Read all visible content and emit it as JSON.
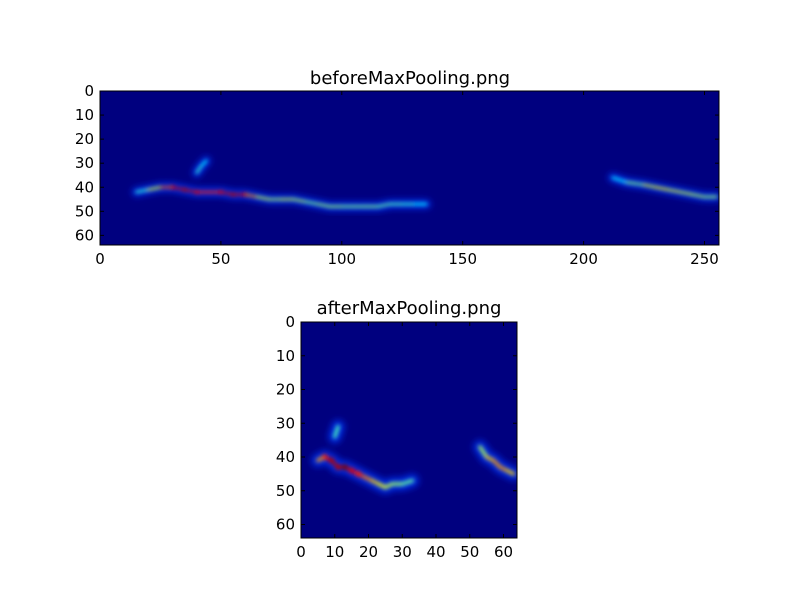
{
  "chart_data": [
    {
      "type": "heatmap",
      "title": "beforeMaxPooling.png",
      "xlim": [
        0,
        256
      ],
      "ylim": [
        64,
        0
      ],
      "xticks": [
        0,
        50,
        100,
        150,
        200,
        250
      ],
      "yticks": [
        0,
        10,
        20,
        30,
        40,
        50,
        60
      ],
      "colormap": "jet",
      "background_color": "#00007f",
      "traces": [
        {
          "points": [
            [
              15,
              42
            ],
            [
              20,
              41
            ],
            [
              25,
              40
            ],
            [
              30,
              40
            ],
            [
              35,
              41
            ],
            [
              40,
              42
            ],
            [
              45,
              42
            ],
            [
              50,
              42
            ],
            [
              55,
              43
            ],
            [
              60,
              43
            ],
            [
              65,
              44
            ],
            [
              70,
              45
            ],
            [
              75,
              45
            ],
            [
              80,
              45
            ],
            [
              85,
              46
            ],
            [
              90,
              47
            ],
            [
              95,
              48
            ],
            [
              100,
              48
            ],
            [
              105,
              48
            ],
            [
              110,
              48
            ],
            [
              115,
              48
            ],
            [
              120,
              47
            ],
            [
              125,
              47
            ],
            [
              130,
              47
            ],
            [
              135,
              47
            ]
          ],
          "intensity": [
            0.35,
            0.5,
            0.7,
            0.9,
            0.95,
            0.9,
            0.8,
            0.9,
            0.95,
            0.9,
            0.6,
            0.55,
            0.55,
            0.6,
            0.5,
            0.5,
            0.55,
            0.5,
            0.5,
            0.5,
            0.5,
            0.45,
            0.45,
            0.4,
            0.35
          ]
        },
        {
          "points": [
            [
              40,
              34
            ],
            [
              42,
              31
            ],
            [
              44,
              29
            ]
          ],
          "intensity": [
            0.45,
            0.4,
            0.35
          ]
        },
        {
          "points": [
            [
              212,
              36
            ],
            [
              218,
              38
            ],
            [
              225,
              39
            ],
            [
              230,
              40
            ],
            [
              235,
              41
            ],
            [
              240,
              42
            ],
            [
              245,
              43
            ],
            [
              250,
              44
            ],
            [
              255,
              44
            ]
          ],
          "intensity": [
            0.3,
            0.45,
            0.55,
            0.65,
            0.6,
            0.6,
            0.55,
            0.55,
            0.5
          ]
        }
      ]
    },
    {
      "type": "heatmap",
      "title": "afterMaxPooling.png",
      "xlim": [
        0,
        64
      ],
      "ylim": [
        64,
        0
      ],
      "xticks": [
        0,
        10,
        20,
        30,
        40,
        50,
        60
      ],
      "yticks": [
        0,
        10,
        20,
        30,
        40,
        50,
        60
      ],
      "colormap": "jet",
      "background_color": "#00007f",
      "traces": [
        {
          "points": [
            [
              5,
              41
            ],
            [
              7,
              40
            ],
            [
              9,
              41
            ],
            [
              11,
              43
            ],
            [
              13,
              43
            ],
            [
              15,
              44
            ],
            [
              17,
              45
            ],
            [
              19,
              46
            ],
            [
              21,
              47
            ],
            [
              23,
              48
            ],
            [
              25,
              49
            ],
            [
              27,
              48
            ],
            [
              30,
              48
            ],
            [
              33,
              47
            ]
          ],
          "intensity": [
            0.6,
            0.85,
            0.95,
            0.95,
            1.0,
            0.9,
            0.85,
            0.8,
            0.7,
            0.65,
            0.6,
            0.55,
            0.5,
            0.45
          ]
        },
        {
          "points": [
            [
              10,
              34
            ],
            [
              11,
              31
            ]
          ],
          "intensity": [
            0.5,
            0.4
          ]
        },
        {
          "points": [
            [
              53,
              37
            ],
            [
              55,
              40
            ],
            [
              57,
              41
            ],
            [
              59,
              43
            ],
            [
              61,
              44
            ],
            [
              63,
              45
            ]
          ],
          "intensity": [
            0.45,
            0.65,
            0.7,
            0.75,
            0.7,
            0.65
          ]
        }
      ]
    }
  ]
}
